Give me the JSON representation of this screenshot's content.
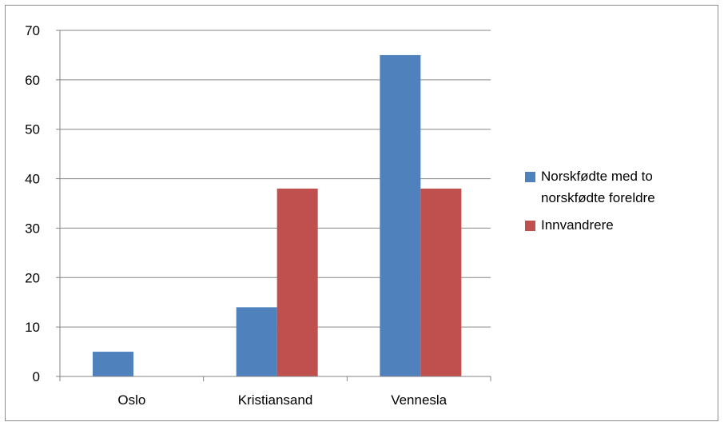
{
  "chart_data": {
    "type": "bar",
    "categories": [
      "Oslo",
      "Kristiansand",
      "Vennesla"
    ],
    "series": [
      {
        "name": "Norskfødte med to norskfødte foreldre",
        "values": [
          5,
          14,
          65
        ],
        "color": "#4f81bd"
      },
      {
        "name": "Innvandrere",
        "values": [
          0,
          38,
          38
        ],
        "color": "#c0504d"
      }
    ],
    "ylim": [
      0,
      70
    ],
    "yticks": [
      0,
      10,
      20,
      30,
      40,
      50,
      60,
      70
    ],
    "grid": true,
    "legend_position": "right",
    "title": "",
    "xlabel": "",
    "ylabel": ""
  }
}
